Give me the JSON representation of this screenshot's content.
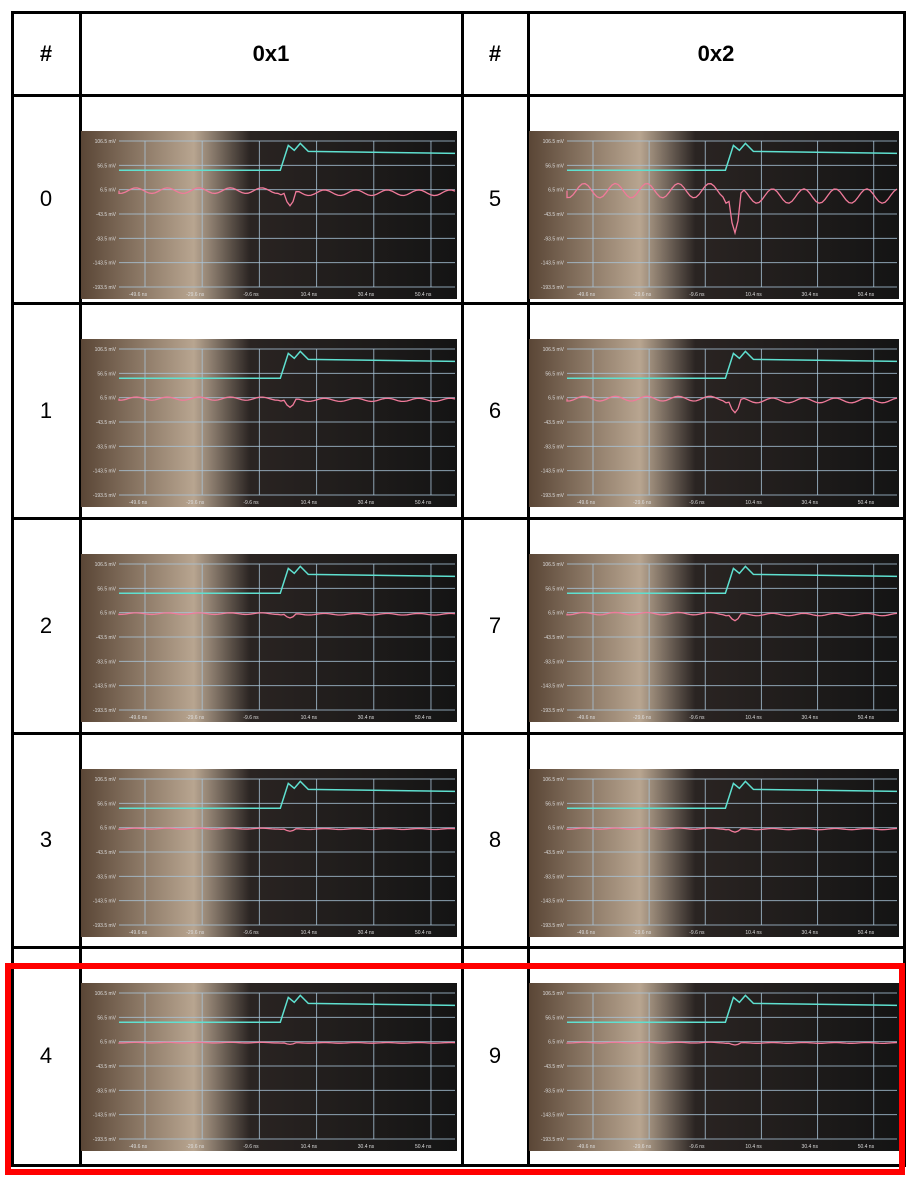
{
  "table": {
    "header": [
      "#",
      "0x1",
      "#",
      "0x2"
    ],
    "rows": [
      [
        "0",
        "5"
      ],
      [
        "1",
        "6"
      ],
      [
        "2",
        "7"
      ],
      [
        "3",
        "8"
      ],
      [
        "4",
        "9"
      ]
    ]
  },
  "scope": {
    "y_labels": [
      "106.5 mV",
      "56.5 mV",
      "6.5 mV",
      "-43.5 mV",
      "-93.5 mV",
      "-143.5 mV",
      "-193.5 mV"
    ],
    "x_labels": [
      "-49.6 ns",
      "-29.6 ns",
      "-9.6 ns",
      "10.4 ns",
      "30.4 ns",
      "50.4 ns"
    ]
  }
}
